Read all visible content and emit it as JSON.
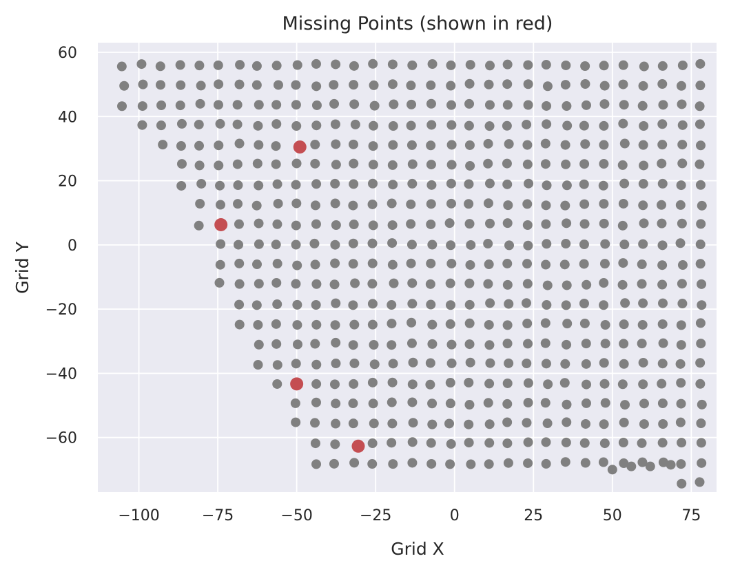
{
  "chart_data": {
    "type": "scatter",
    "title": "Missing Points (shown in red)",
    "xlabel": "Grid X",
    "ylabel": "Grid Y",
    "xlim": [
      -113,
      83
    ],
    "ylim": [
      -77,
      63
    ],
    "xticks": [
      -100,
      -75,
      -50,
      -25,
      0,
      25,
      50,
      75
    ],
    "yticks": [
      -60,
      -40,
      -20,
      0,
      20,
      40,
      60
    ],
    "grid": true,
    "colors": {
      "background": "#eaeaf2",
      "grid": "#ffffff",
      "present": "#808080",
      "missing": "#c44e52"
    },
    "grid_pattern": {
      "x_start": -105,
      "x_step": 6.1,
      "y_start": 56,
      "y_step": -6.2,
      "rows": [
        {
          "col_start": 0,
          "col_end": 30
        },
        {
          "col_start": 0,
          "col_end": 30
        },
        {
          "col_start": 0,
          "col_end": 30
        },
        {
          "col_start": 1,
          "col_end": 30
        },
        {
          "col_start": 2,
          "col_end": 30
        },
        {
          "col_start": 3,
          "col_end": 30
        },
        {
          "col_start": 3,
          "col_end": 30
        },
        {
          "col_start": 4,
          "col_end": 30
        },
        {
          "col_start": 4,
          "col_end": 30
        },
        {
          "col_start": 5,
          "col_end": 30
        },
        {
          "col_start": 5,
          "col_end": 30
        },
        {
          "col_start": 5,
          "col_end": 30
        },
        {
          "col_start": 6,
          "col_end": 30
        },
        {
          "col_start": 6,
          "col_end": 30
        },
        {
          "col_start": 7,
          "col_end": 30
        },
        {
          "col_start": 7,
          "col_end": 30
        },
        {
          "col_start": 8,
          "col_end": 30
        },
        {
          "col_start": 9,
          "col_end": 30
        },
        {
          "col_start": 9,
          "col_end": 30
        },
        {
          "col_start": 10,
          "col_end": 30
        },
        {
          "col_start": 10,
          "col_end": 30
        },
        {
          "col_start": 29,
          "col_end": 30
        }
      ],
      "extra_points": [
        [
          50,
          -70
        ],
        [
          56,
          -69
        ],
        [
          62,
          -69
        ],
        [
          68.5,
          -68.5
        ]
      ]
    },
    "series": [
      {
        "values": [
          [
            -49,
            30.5
          ],
          [
            -74,
            6.3
          ],
          [
            -50,
            -43.3
          ],
          [
            -30.5,
            -62.7
          ]
        ]
      }
    ]
  }
}
